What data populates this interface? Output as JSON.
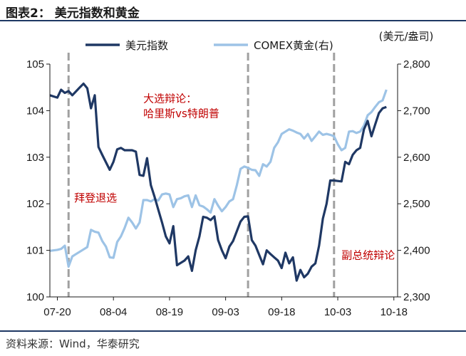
{
  "figure": {
    "title": "图表2：  美元指数和黄金",
    "source": "资料来源：Wind，华泰研究"
  },
  "chart_data": {
    "type": "line",
    "title": "",
    "right_axis_unit": "(美元/盎司)",
    "legend_placement": "top",
    "grid": false,
    "y_left": {
      "min": 100,
      "max": 105,
      "ticks": [
        100,
        101,
        102,
        103,
        104,
        105
      ],
      "tick_labels": [
        "100",
        "101",
        "102",
        "103",
        "104",
        "105"
      ]
    },
    "y_right": {
      "min": 2300,
      "max": 2800,
      "ticks": [
        2300,
        2400,
        2500,
        2600,
        2700,
        2800
      ],
      "tick_labels": [
        "2,300",
        "2,400",
        "2,500",
        "2,600",
        "2,700",
        "2,800"
      ]
    },
    "x_range": [
      -2,
      91
    ],
    "x_ticks": [
      {
        "day": 0,
        "label": "07-20"
      },
      {
        "day": 15,
        "label": "08-04"
      },
      {
        "day": 30,
        "label": "08-19"
      },
      {
        "day": 45,
        "label": "09-03"
      },
      {
        "day": 60,
        "label": "09-18"
      },
      {
        "day": 75,
        "label": "10-03"
      },
      {
        "day": 90,
        "label": "10-18"
      }
    ],
    "vlines": [
      {
        "day": 3,
        "color": "#a0a0a0"
      },
      {
        "day": 51,
        "color": "#a0a0a0"
      },
      {
        "day": 74,
        "color": "#a0a0a0"
      }
    ],
    "annotations": [
      {
        "text": "大选辩论：",
        "day": 23,
        "value_left": 104.18
      },
      {
        "text": "哈里斯vs特朗普",
        "day": 23,
        "value_left": 103.86
      },
      {
        "text": "拜登退选",
        "day": 4.5,
        "value_left": 102.05
      },
      {
        "text": "副总统辩论",
        "day": 76,
        "value_left": 100.82
      }
    ],
    "series": [
      {
        "name": "美元指数",
        "axis": "left",
        "color": "#1f3864",
        "points": [
          [
            -2,
            104.33
          ],
          [
            0,
            104.28
          ],
          [
            1,
            104.45
          ],
          [
            2,
            104.38
          ],
          [
            3,
            104.42
          ],
          [
            4,
            104.33
          ],
          [
            6,
            104.5
          ],
          [
            7,
            104.58
          ],
          [
            8,
            104.48
          ],
          [
            9,
            104.05
          ],
          [
            10,
            104.33
          ],
          [
            11,
            103.22
          ],
          [
            12,
            103.05
          ],
          [
            14,
            102.73
          ],
          [
            15,
            102.9
          ],
          [
            16,
            103.17
          ],
          [
            17,
            103.2
          ],
          [
            18,
            103.15
          ],
          [
            20,
            103.15
          ],
          [
            21,
            103.12
          ],
          [
            22,
            102.62
          ],
          [
            23,
            102.6
          ],
          [
            24,
            102.98
          ],
          [
            25,
            102.4
          ],
          [
            26,
            102.15
          ],
          [
            27,
            101.87
          ],
          [
            28,
            101.6
          ],
          [
            29,
            101.3
          ],
          [
            30,
            101.15
          ],
          [
            31,
            101.52
          ],
          [
            32,
            100.68
          ],
          [
            34,
            100.78
          ],
          [
            35,
            100.87
          ],
          [
            36,
            100.56
          ],
          [
            37,
            101.0
          ],
          [
            38,
            101.3
          ],
          [
            39,
            101.72
          ],
          [
            40,
            101.7
          ],
          [
            41,
            101.65
          ],
          [
            42,
            101.73
          ],
          [
            43,
            101.22
          ],
          [
            44,
            101.0
          ],
          [
            45,
            100.83
          ],
          [
            46,
            101.08
          ],
          [
            47,
            101.2
          ],
          [
            49,
            101.62
          ],
          [
            50,
            101.72
          ],
          [
            51,
            101.73
          ],
          [
            52,
            101.22
          ],
          [
            53,
            101.1
          ],
          [
            54,
            100.9
          ],
          [
            55,
            100.7
          ],
          [
            56,
            101.0
          ],
          [
            57,
            100.92
          ],
          [
            58,
            100.85
          ],
          [
            59,
            100.78
          ],
          [
            60,
            100.62
          ],
          [
            61,
            100.95
          ],
          [
            62,
            100.72
          ],
          [
            63,
            100.85
          ],
          [
            64,
            100.35
          ],
          [
            65,
            100.58
          ],
          [
            66,
            100.42
          ],
          [
            67,
            100.5
          ],
          [
            68,
            100.65
          ],
          [
            69,
            100.72
          ],
          [
            70,
            101.1
          ],
          [
            71,
            101.68
          ],
          [
            72,
            102.0
          ],
          [
            73,
            102.5
          ],
          [
            74,
            102.5
          ],
          [
            75,
            102.49
          ],
          [
            76,
            102.48
          ],
          [
            77,
            102.9
          ],
          [
            78,
            102.85
          ],
          [
            79,
            103.05
          ],
          [
            80,
            103.15
          ],
          [
            81,
            103.2
          ],
          [
            82,
            103.6
          ],
          [
            83,
            103.78
          ],
          [
            84,
            103.45
          ],
          [
            85,
            103.7
          ],
          [
            86,
            103.95
          ],
          [
            87,
            104.05
          ],
          [
            88,
            104.08
          ]
        ]
      },
      {
        "name": "COMEX黄金(右)",
        "axis": "right",
        "color": "#9dc3e6",
        "points": [
          [
            -2,
            2399
          ],
          [
            0,
            2401
          ],
          [
            1,
            2403
          ],
          [
            2,
            2410
          ],
          [
            3,
            2365
          ],
          [
            4,
            2387
          ],
          [
            5,
            2392
          ],
          [
            7,
            2402
          ],
          [
            8,
            2407
          ],
          [
            9,
            2444
          ],
          [
            10,
            2440
          ],
          [
            11,
            2438
          ],
          [
            12,
            2420
          ],
          [
            13,
            2408
          ],
          [
            14,
            2385
          ],
          [
            15,
            2384
          ],
          [
            16,
            2418
          ],
          [
            17,
            2430
          ],
          [
            18,
            2448
          ],
          [
            19,
            2470
          ],
          [
            20,
            2460
          ],
          [
            21,
            2447
          ],
          [
            22,
            2460
          ],
          [
            23,
            2508
          ],
          [
            24,
            2508
          ],
          [
            25,
            2505
          ],
          [
            26,
            2510
          ],
          [
            27,
            2507
          ],
          [
            28,
            2520
          ],
          [
            29,
            2522
          ],
          [
            30,
            2520
          ],
          [
            31,
            2493
          ],
          [
            32,
            2510
          ],
          [
            33,
            2512
          ],
          [
            34,
            2516
          ],
          [
            35,
            2518
          ],
          [
            36,
            2493
          ],
          [
            37,
            2518
          ],
          [
            38,
            2497
          ],
          [
            39,
            2494
          ],
          [
            40,
            2488
          ],
          [
            41,
            2481
          ],
          [
            42,
            2510
          ],
          [
            43,
            2496
          ],
          [
            44,
            2484
          ],
          [
            45,
            2493
          ],
          [
            46,
            2505
          ],
          [
            47,
            2510
          ],
          [
            48,
            2540
          ],
          [
            49,
            2575
          ],
          [
            50,
            2580
          ],
          [
            51,
            2577
          ],
          [
            52,
            2573
          ],
          [
            53,
            2572
          ],
          [
            54,
            2560
          ],
          [
            55,
            2585
          ],
          [
            56,
            2580
          ],
          [
            57,
            2590
          ],
          [
            58,
            2620
          ],
          [
            59,
            2632
          ],
          [
            60,
            2650
          ],
          [
            61,
            2655
          ],
          [
            62,
            2660
          ],
          [
            63,
            2657
          ],
          [
            64,
            2653
          ],
          [
            65,
            2650
          ],
          [
            66,
            2640
          ],
          [
            67,
            2650
          ],
          [
            68,
            2635
          ],
          [
            69,
            2645
          ],
          [
            70,
            2655
          ],
          [
            71,
            2648
          ],
          [
            72,
            2650
          ],
          [
            73,
            2648
          ],
          [
            74,
            2645
          ],
          [
            75,
            2628
          ],
          [
            76,
            2615
          ],
          [
            77,
            2620
          ],
          [
            78,
            2655
          ],
          [
            79,
            2656
          ],
          [
            80,
            2652
          ],
          [
            81,
            2655
          ],
          [
            82,
            2668
          ],
          [
            83,
            2690
          ],
          [
            84,
            2697
          ],
          [
            85,
            2708
          ],
          [
            86,
            2718
          ],
          [
            87,
            2722
          ],
          [
            88,
            2745
          ]
        ]
      }
    ]
  }
}
